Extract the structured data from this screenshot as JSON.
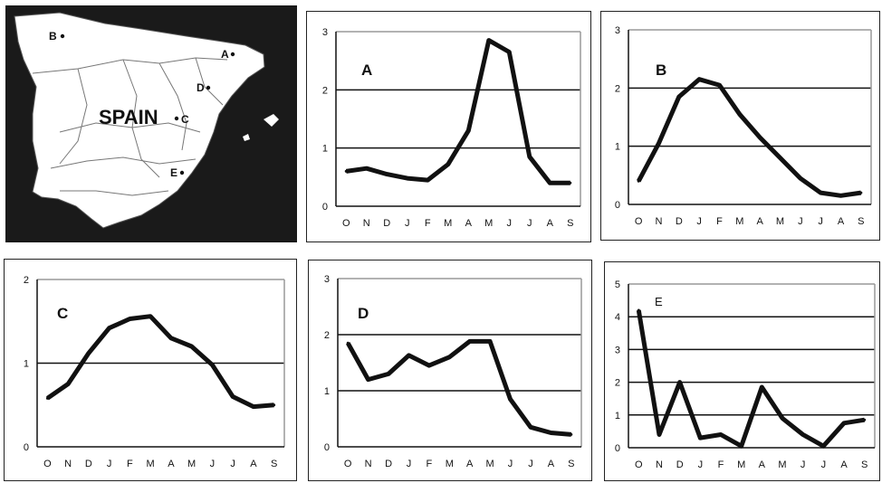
{
  "map": {
    "country_label": "SPAIN",
    "sites": [
      {
        "label": "B"
      },
      {
        "label": "A"
      },
      {
        "label": "D"
      },
      {
        "label": "C"
      },
      {
        "label": "E"
      }
    ]
  },
  "chart_data": [
    {
      "type": "line",
      "title": "A",
      "categories": [
        "O",
        "N",
        "D",
        "J",
        "F",
        "M",
        "A",
        "M",
        "J",
        "J",
        "A",
        "S"
      ],
      "values": [
        0.6,
        0.65,
        0.55,
        0.48,
        0.45,
        0.72,
        1.3,
        2.85,
        2.65,
        0.85,
        0.4,
        0.4
      ],
      "yticks": [
        "0",
        "1",
        "2",
        "3"
      ],
      "ylim": [
        0,
        3
      ],
      "grid": true
    },
    {
      "type": "line",
      "title": "B",
      "categories": [
        "O",
        "N",
        "D",
        "J",
        "F",
        "M",
        "A",
        "M",
        "J",
        "J",
        "A",
        "S"
      ],
      "values": [
        0.4,
        1.05,
        1.85,
        2.15,
        2.05,
        1.55,
        1.15,
        0.8,
        0.45,
        0.2,
        0.15,
        0.2
      ],
      "yticks": [
        "0",
        "1",
        "2",
        "3"
      ],
      "ylim": [
        0,
        3
      ],
      "grid": true
    },
    {
      "type": "line",
      "title": "C",
      "categories": [
        "O",
        "N",
        "D",
        "J",
        "F",
        "M",
        "A",
        "M",
        "J",
        "J",
        "A",
        "S"
      ],
      "values": [
        0.58,
        0.75,
        1.12,
        1.42,
        1.53,
        1.56,
        1.3,
        1.2,
        0.98,
        0.6,
        0.48,
        0.5
      ],
      "yticks": [
        "0",
        "1",
        "2"
      ],
      "ylim": [
        0,
        2
      ],
      "grid": true
    },
    {
      "type": "line",
      "title": "D",
      "categories": [
        "O",
        "N",
        "D",
        "J",
        "F",
        "M",
        "A",
        "M",
        "J",
        "J",
        "A",
        "S"
      ],
      "values": [
        1.85,
        1.2,
        1.3,
        1.63,
        1.45,
        1.6,
        1.88,
        1.88,
        0.85,
        0.35,
        0.25,
        0.22
      ],
      "yticks": [
        "0",
        "1",
        "2",
        "3"
      ],
      "ylim": [
        0,
        3
      ],
      "grid": true
    },
    {
      "type": "line",
      "title": "E",
      "categories": [
        "O",
        "N",
        "D",
        "J",
        "F",
        "M",
        "A",
        "M",
        "J",
        "J",
        "A",
        "S"
      ],
      "values": [
        4.2,
        0.4,
        2.0,
        0.3,
        0.4,
        0.05,
        1.85,
        0.9,
        0.4,
        0.05,
        0.75,
        0.85
      ],
      "yticks": [
        "0",
        "1",
        "2",
        "3",
        "4",
        "5"
      ],
      "ylim": [
        0,
        5
      ],
      "grid": true
    }
  ]
}
